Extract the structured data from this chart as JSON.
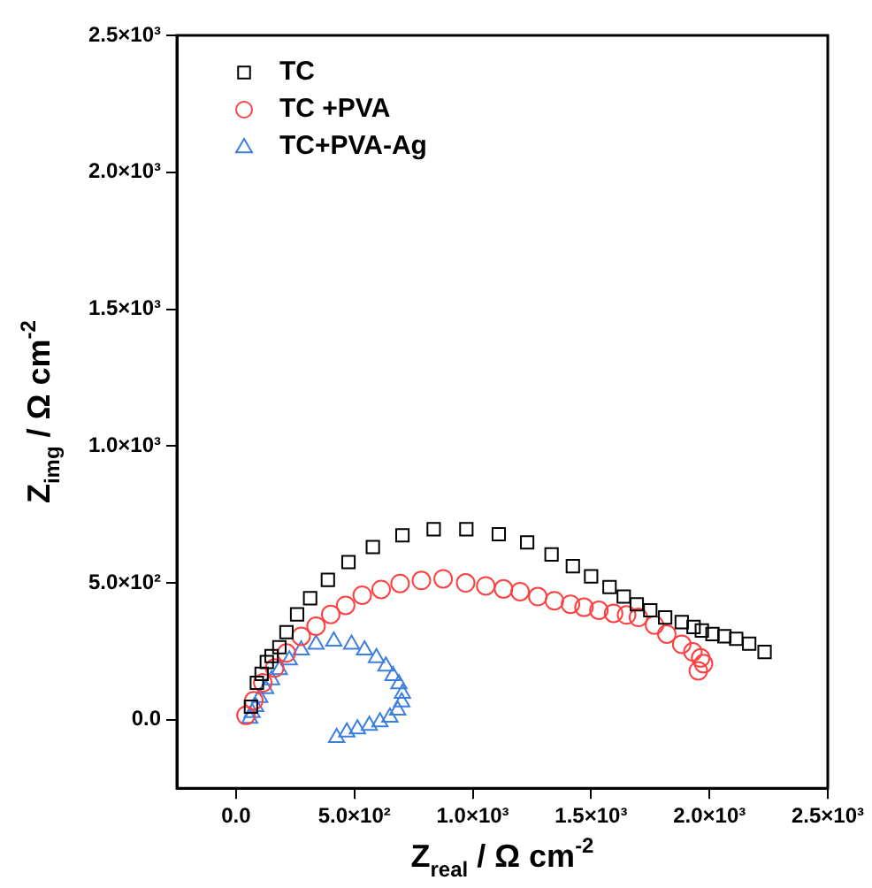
{
  "chart_data": {
    "type": "scatter",
    "xlabel": "Z$_{real}$ / Ω cm$^{-2}$",
    "ylabel": "Z$_{img}$ / Ω cm$^{-2}$",
    "xlim": [
      -250,
      2500
    ],
    "ylim": [
      -250,
      2500
    ],
    "xticks": [
      {
        "value": 0,
        "label": "0.0"
      },
      {
        "value": 500,
        "label": "5.0×10²"
      },
      {
        "value": 1000,
        "label": "1.0×10³"
      },
      {
        "value": 1500,
        "label": "1.5×10³"
      },
      {
        "value": 2000,
        "label": "2.0×10³"
      },
      {
        "value": 2500,
        "label": "2.5×10³"
      }
    ],
    "yticks": [
      {
        "value": 0,
        "label": "0.0"
      },
      {
        "value": 500,
        "label": "5.0×10²"
      },
      {
        "value": 1000,
        "label": "1.0×10³"
      },
      {
        "value": 1500,
        "label": "1.5×10³"
      },
      {
        "value": 2000,
        "label": "2.0×10³"
      },
      {
        "value": 2500,
        "label": "2.5×10³"
      }
    ],
    "grid": false,
    "legend": "top left",
    "series": [
      {
        "name": "TC",
        "color": "#000000",
        "marker": "square",
        "x": [
          63,
          88,
          108,
          130,
          150,
          183,
          213,
          258,
          313,
          388,
          475,
          578,
          703,
          835,
          973,
          1110,
          1230,
          1333,
          1423,
          1500,
          1578,
          1638,
          1693,
          1750,
          1813,
          1883,
          1933,
          1968,
          2013,
          2063,
          2113,
          2168,
          2233
        ],
        "values": [
          48,
          135,
          168,
          211,
          233,
          265,
          320,
          385,
          444,
          511,
          576,
          631,
          674,
          696,
          696,
          678,
          648,
          604,
          561,
          524,
          485,
          450,
          422,
          400,
          374,
          357,
          339,
          326,
          313,
          305,
          296,
          278,
          248
        ]
      },
      {
        "name": "TC +PVA",
        "color": "#ff4040",
        "marker": "circle",
        "x": [
          42,
          75,
          113,
          163,
          213,
          275,
          338,
          400,
          463,
          533,
          613,
          693,
          783,
          875,
          970,
          1055,
          1130,
          1200,
          1275,
          1345,
          1413,
          1470,
          1533,
          1595,
          1650,
          1700,
          1768,
          1820,
          1883,
          1930,
          1963,
          1975,
          1953
        ],
        "values": [
          16,
          70,
          135,
          189,
          244,
          305,
          342,
          385,
          418,
          455,
          476,
          498,
          509,
          515,
          500,
          489,
          478,
          468,
          450,
          435,
          422,
          411,
          400,
          389,
          383,
          374,
          346,
          313,
          276,
          248,
          226,
          205,
          179
        ]
      },
      {
        "name": "TC+PVA-Ag",
        "color": "#3d7fe0",
        "marker": "triangle",
        "x": [
          58,
          68,
          83,
          100,
          125,
          150,
          183,
          225,
          275,
          338,
          413,
          488,
          543,
          593,
          633,
          663,
          688,
          703,
          700,
          683,
          650,
          608,
          563,
          513,
          468,
          425
        ],
        "values": [
          5,
          26,
          48,
          81,
          113,
          146,
          183,
          218,
          255,
          276,
          287,
          276,
          255,
          226,
          196,
          161,
          131,
          96,
          65,
          35,
          9,
          -8,
          -21,
          -34,
          -45,
          -65
        ]
      }
    ]
  }
}
